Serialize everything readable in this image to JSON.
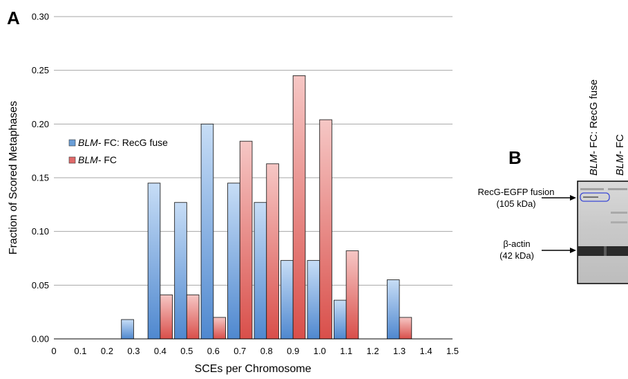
{
  "panel_a": {
    "letter": "A"
  },
  "panel_b": {
    "letter": "B"
  },
  "chart_data": {
    "type": "bar",
    "xlabel": "SCEs per Chromosome",
    "ylabel": "Fraction of Scored Metaphases",
    "ylim": [
      0,
      0.3
    ],
    "grid": true,
    "legend_position": "left",
    "categories": [
      "0.3",
      "0.4",
      "0.5",
      "0.6",
      "0.7",
      "0.8",
      "0.9",
      "1.0",
      "1.1",
      "1.3"
    ],
    "x_ticks": [
      "0",
      "0.1",
      "0.2",
      "0.3",
      "0.4",
      "0.5",
      "0.6",
      "0.7",
      "0.8",
      "0.9",
      "1.0",
      "1.1",
      "1.2",
      "1.3",
      "1.4",
      "1.5"
    ],
    "y_ticks": [
      "0.00",
      "0.05",
      "0.10",
      "0.15",
      "0.20",
      "0.25",
      "0.30"
    ],
    "series": [
      {
        "name_italic": "BLM-",
        "name_rest": " FC: RecG fuse",
        "color": "#6a9fd8",
        "values": [
          0.018,
          0.145,
          0.127,
          0.2,
          0.145,
          0.127,
          0.073,
          0.073,
          0.036,
          0.055
        ]
      },
      {
        "name_italic": "BLM-",
        "name_rest": " FC",
        "color": "#e06a6a",
        "values": [
          0,
          0.041,
          0.041,
          0.02,
          0.184,
          0.163,
          0.245,
          0.204,
          0.082,
          0.02
        ]
      }
    ]
  },
  "blot": {
    "lane1_italic": "BLM-",
    "lane1_rest": " FC: RecG fuse",
    "lane2_italic": "BLM-",
    "lane2_rest": " FC",
    "band1_line1": "RecG-EGFP fusion",
    "band1_line2": "(105 kDa)",
    "band2_line1": "β-actin",
    "band2_line2": "(42 kDa)"
  }
}
